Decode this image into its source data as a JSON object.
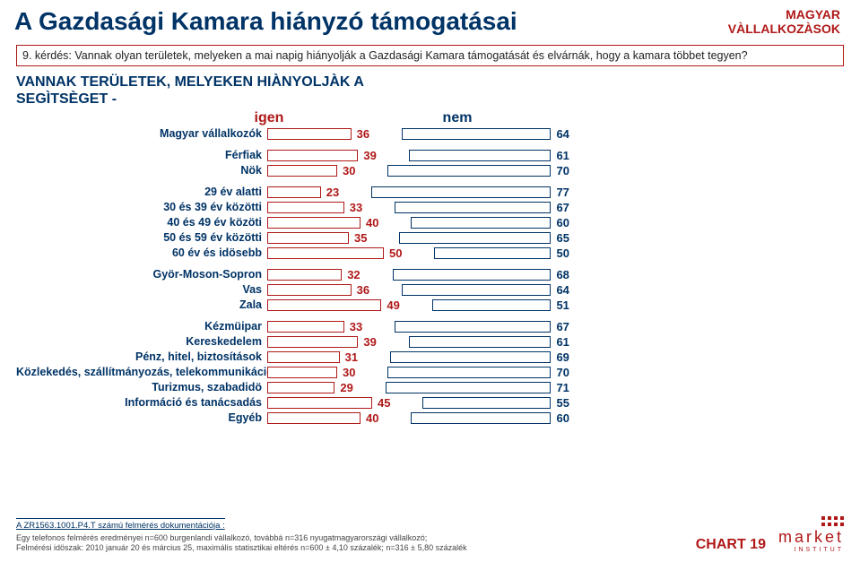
{
  "header": {
    "title": "A Gazdasági Kamara hiányzó támogatásai",
    "notice_line1": "MAGYAR",
    "notice_line2": "VÀLLALKOZÀSOK"
  },
  "question": {
    "num": "9. kérdés:",
    "text": "Vannak olyan területek, melyeken a mai napig hiányolják a Gazdasági Kamara támogatását és elvárnák, hogy a kamara többet tegyen?"
  },
  "subtitle": {
    "line1": "VANNAK TERÜLETEK, MELYEKEN HIÀNYOLJÀK A",
    "line2": "SEGÌTSÈGET -"
  },
  "legend": {
    "igen": "igen",
    "nem": "nem"
  },
  "chart": {
    "scale": 2.6,
    "igen_color": "#b01818",
    "nem_color": "#003366",
    "bar_bg": "#ffffff",
    "groups": [
      {
        "rows": [
          {
            "label": "Magyar vállalkozók",
            "igen": 36,
            "nem": 64
          }
        ]
      },
      {
        "rows": [
          {
            "label": "Férfiak",
            "igen": 39,
            "nem": 61
          },
          {
            "label": "Nök",
            "igen": 30,
            "nem": 70
          }
        ]
      },
      {
        "rows": [
          {
            "label": "29 év alatti",
            "igen": 23,
            "nem": 77
          },
          {
            "label": "30 és 39 év közötti",
            "igen": 33,
            "nem": 67
          },
          {
            "label": "40 és 49 év közöti",
            "igen": 40,
            "nem": 60
          },
          {
            "label": "50 és 59 év közötti",
            "igen": 35,
            "nem": 65
          },
          {
            "label": "60 év és idösebb",
            "igen": 50,
            "nem": 50
          }
        ]
      },
      {
        "rows": [
          {
            "label": "Györ-Moson-Sopron",
            "igen": 32,
            "nem": 68
          },
          {
            "label": "Vas",
            "igen": 36,
            "nem": 64
          },
          {
            "label": "Zala",
            "igen": 49,
            "nem": 51
          }
        ]
      },
      {
        "rows": [
          {
            "label": "Kézmüipar",
            "igen": 33,
            "nem": 67
          },
          {
            "label": "Kereskedelem",
            "igen": 39,
            "nem": 61
          },
          {
            "label": "Pénz, hitel, biztosítások",
            "igen": 31,
            "nem": 69
          },
          {
            "label": "Közlekedés, szállítmányozás, telekommunikáció",
            "igen": 30,
            "nem": 70
          },
          {
            "label": "Turizmus, szabadidö",
            "igen": 29,
            "nem": 71
          },
          {
            "label": "Információ és tanácsadás",
            "igen": 45,
            "nem": 55
          },
          {
            "label": "Egyéb",
            "igen": 40,
            "nem": 60
          }
        ]
      }
    ]
  },
  "footer": {
    "doc_id": "A ZR1563.1001.P4.T számú felmérés dokumentációja :",
    "line1": "Egy telefonos felmérés eredményei n=600 burgenlandi vállalkozó, továbbá   n=316 nyugatmagyarországi vállalkozó;",
    "line2": "Felmérési idöszak: 2010 január 20 és március 25, maximális statisztikai eltérés n=600 ± 4,10 százalék; n=316 ± 5,80 százalék",
    "chart_num": "CHART 19",
    "logo": "market",
    "logo_sub": "INSTITUT"
  }
}
